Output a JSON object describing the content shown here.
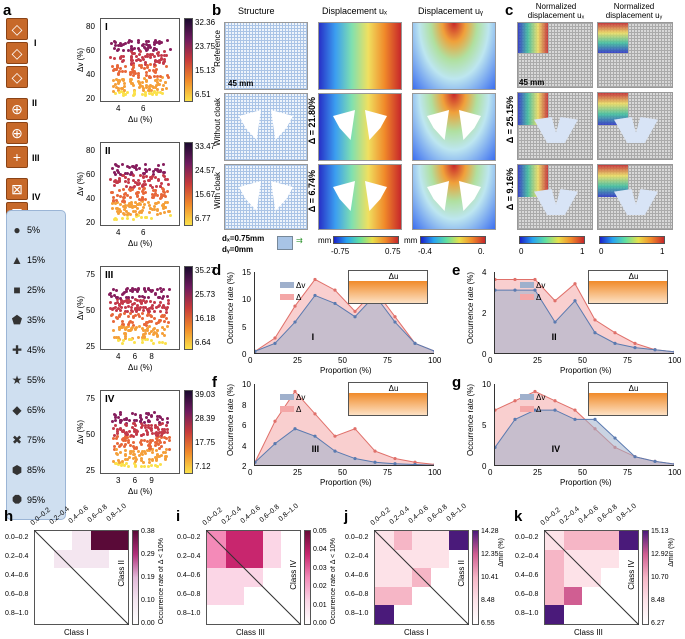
{
  "panels": {
    "a": "a",
    "b": "b",
    "c": "c",
    "d": "d",
    "e": "e",
    "f": "f",
    "g": "g",
    "h": "h",
    "i": "i",
    "j": "j",
    "k": "k"
  },
  "classes": [
    "I",
    "II",
    "III",
    "IV"
  ],
  "legend": [
    "5%",
    "15%",
    "25%",
    "35%",
    "45%",
    "55%",
    "65%",
    "75%",
    "85%",
    "95%"
  ],
  "scatter": [
    {
      "roman": "I",
      "ylabel": "Δv (%)",
      "xlabel": "Δu (%)",
      "cbar_label": "Δ (%)",
      "cbar": [
        "32.36",
        "23.75",
        "15.13",
        "6.51"
      ],
      "yticks": [
        "80",
        "60",
        "40",
        "20"
      ],
      "xticks": [
        "4",
        "6"
      ]
    },
    {
      "roman": "II",
      "ylabel": "Δv (%)",
      "xlabel": "Δu (%)",
      "cbar_label": "Δ (%)",
      "cbar": [
        "33.47",
        "24.57",
        "15.67",
        "6.77"
      ],
      "yticks": [
        "80",
        "60",
        "40",
        "20"
      ],
      "xticks": [
        "4",
        "6"
      ]
    },
    {
      "roman": "III",
      "ylabel": "Δv (%)",
      "xlabel": "Δu (%)",
      "cbar_label": "Δ (%)",
      "cbar": [
        "35.27",
        "25.73",
        "16.18",
        "6.64"
      ],
      "yticks": [
        "75",
        "50",
        "25"
      ],
      "xticks": [
        "4",
        "6",
        "8"
      ]
    },
    {
      "roman": "IV",
      "ylabel": "Δv (%)",
      "xlabel": "Δu (%)",
      "cbar_label": "Δ (%)",
      "cbar": [
        "39.03",
        "28.39",
        "17.75",
        "7.12"
      ],
      "yticks": [
        "75",
        "50",
        "25"
      ],
      "xticks": [
        "3",
        "6",
        "9"
      ]
    }
  ],
  "b": {
    "col_headers": [
      "Structure",
      "Displacement uₓ",
      "Displacement uᵧ"
    ],
    "row_labels": [
      "Reference",
      "Without cloak",
      "With cloak"
    ],
    "delta_labels": [
      "Δ = 21.80%",
      "Δ = 6.74%"
    ],
    "scale": "45 mm",
    "dx": "dₓ=0.75mm",
    "dy": "dᵧ=0mm",
    "cbar1": {
      "unit": "mm",
      "min": "-0.75",
      "max": "0.75"
    },
    "cbar2": {
      "unit": "mm",
      "min": "-0.4",
      "max": "0."
    }
  },
  "c": {
    "col_headers": [
      "Normalized displacement uₓ",
      "Normalized displacement uᵧ"
    ],
    "delta_labels": [
      "Δ = 25.15%",
      "Δ = 9.16%"
    ],
    "scale": "45 mm",
    "cbar_min": "0",
    "cbar_max": "1"
  },
  "lines": {
    "ylabel": "Occurrence rate (%)",
    "xlabel": "Proportion (%)",
    "legend_v": "Δv",
    "legend_d": "Δ",
    "legend_u": "Δu",
    "d": {
      "roman": "I",
      "yticks": [
        "15",
        "10",
        "5",
        "0"
      ],
      "xticks": [
        "0",
        "25",
        "50",
        "75",
        "100"
      ]
    },
    "e": {
      "roman": "II",
      "yticks": [
        "4",
        "2",
        "0"
      ],
      "xticks": [
        "0",
        "25",
        "50",
        "75",
        "100"
      ]
    },
    "f": {
      "roman": "III",
      "yticks": [
        "10",
        "8",
        "6",
        "4",
        "2"
      ],
      "xticks": [
        "0",
        "25",
        "50",
        "75",
        "100"
      ]
    },
    "g": {
      "roman": "IV",
      "yticks": [
        "10",
        "5",
        "0"
      ],
      "xticks": [
        "0",
        "25",
        "50",
        "75",
        "100"
      ]
    }
  },
  "heat": [
    {
      "id": "h",
      "left": "Class I",
      "right": "Class II",
      "cbar_label": "Occurrence rate of Δ < 10%",
      "cbar": [
        "0.38",
        "0.29",
        "0.19",
        "0.10",
        "0.00"
      ],
      "bins": [
        "0.0–0.2",
        "0.2–0.4",
        "0.4–0.6",
        "0.6–0.8",
        "0.8–1.0"
      ]
    },
    {
      "id": "i",
      "left": "Class III",
      "right": "Class IV",
      "cbar_label": "Occurrence rate of Δ < 10%",
      "cbar": [
        "0.05",
        "0.04",
        "0.03",
        "0.02",
        "0.01",
        "0.00"
      ],
      "bins": [
        "0.0–0.2",
        "0.2–0.4",
        "0.4–0.6",
        "0.6–0.8",
        "0.8–1.0"
      ]
    },
    {
      "id": "j",
      "left": "Class I",
      "right": "Class II",
      "cbar_label": "Δmin (%)",
      "cbar": [
        "14.28",
        "12.35",
        "10.41",
        "8.48",
        "6.55"
      ],
      "bins": [
        "0.0–0.2",
        "0.2–0.4",
        "0.4–0.6",
        "0.6–0.8",
        "0.8–1.0"
      ]
    },
    {
      "id": "k",
      "left": "Class III",
      "right": "Class IV",
      "cbar_label": "Δmin (%)",
      "cbar": [
        "15.13",
        "12.92",
        "10.70",
        "8.48",
        "6.27"
      ],
      "bins": [
        "0.0–0.2",
        "0.2–0.4",
        "0.4–0.6",
        "0.6–0.8",
        "0.8–1.0"
      ]
    }
  ]
}
